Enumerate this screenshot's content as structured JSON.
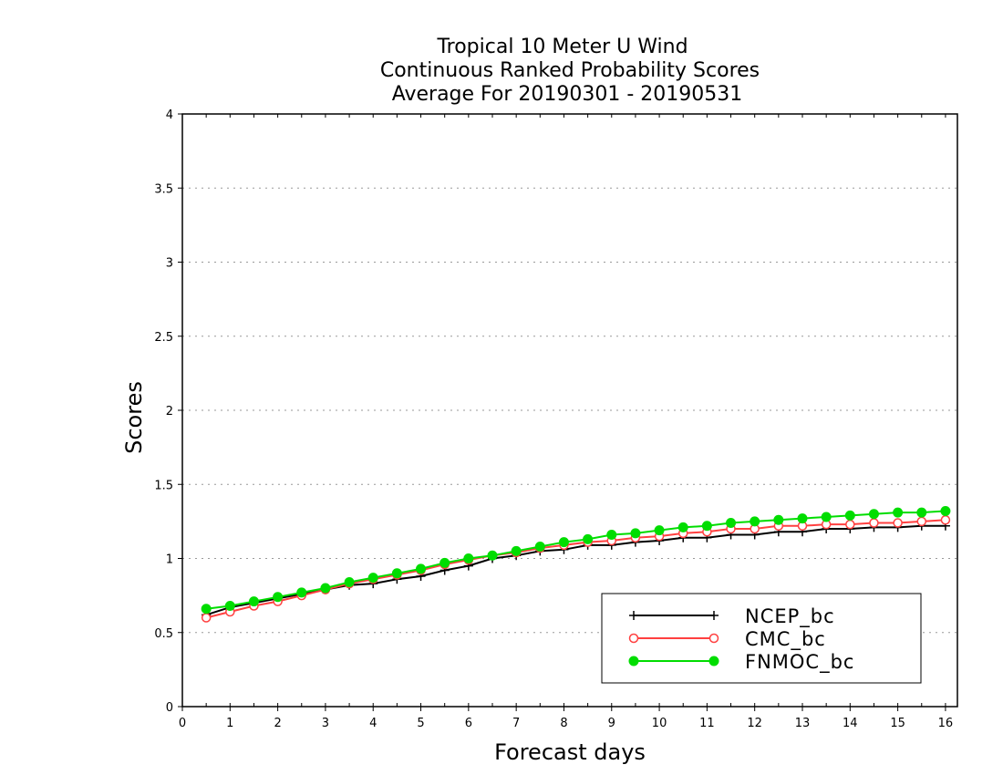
{
  "chart_data": {
    "type": "line",
    "title_lines": [
      "Tropical 10 Meter U Wind",
      "Continuous Ranked Probability Scores",
      "Average For 20190301 - 20190531"
    ],
    "xlabel": "Forecast days",
    "ylabel": "Scores",
    "xlim": [
      0,
      16.25
    ],
    "ylim": [
      0,
      4
    ],
    "x_ticks": [
      0,
      1,
      2,
      3,
      4,
      5,
      6,
      7,
      8,
      9,
      10,
      11,
      12,
      13,
      14,
      15,
      16
    ],
    "y_ticks": [
      0,
      0.5,
      1,
      1.5,
      2,
      2.5,
      3,
      3.5,
      4
    ],
    "y_tick_labels": [
      "0",
      "0.5",
      "1",
      "1.5",
      "2",
      "2.5",
      "3",
      "3.5",
      "4"
    ],
    "grid": "horizontal dotted",
    "legend_position": "bottom-right",
    "x": [
      0.5,
      1,
      1.5,
      2,
      2.5,
      3,
      3.5,
      4,
      4.5,
      5,
      5.5,
      6,
      6.5,
      7,
      7.5,
      8,
      8.5,
      9,
      9.5,
      10,
      10.5,
      11,
      11.5,
      12,
      12.5,
      13,
      13.5,
      14,
      14.5,
      15,
      15.5,
      16
    ],
    "series": [
      {
        "name": "NCEP_bc",
        "color": "#000000",
        "marker": "plus",
        "values": [
          0.62,
          0.67,
          0.7,
          0.73,
          0.76,
          0.79,
          0.82,
          0.83,
          0.86,
          0.88,
          0.92,
          0.95,
          1.0,
          1.02,
          1.05,
          1.06,
          1.09,
          1.09,
          1.11,
          1.12,
          1.14,
          1.14,
          1.16,
          1.16,
          1.18,
          1.18,
          1.2,
          1.2,
          1.21,
          1.21,
          1.22,
          1.22
        ]
      },
      {
        "name": "CMC_bc",
        "color": "#ff4040",
        "marker": "open-circle",
        "values": [
          0.6,
          0.64,
          0.68,
          0.71,
          0.75,
          0.79,
          0.83,
          0.86,
          0.89,
          0.92,
          0.96,
          0.99,
          1.02,
          1.04,
          1.07,
          1.09,
          1.11,
          1.12,
          1.14,
          1.15,
          1.17,
          1.18,
          1.2,
          1.2,
          1.22,
          1.22,
          1.23,
          1.23,
          1.24,
          1.24,
          1.25,
          1.26
        ]
      },
      {
        "name": "FNMOC_bc",
        "color": "#00dd00",
        "marker": "filled-circle",
        "values": [
          0.66,
          0.68,
          0.71,
          0.74,
          0.77,
          0.8,
          0.84,
          0.87,
          0.9,
          0.93,
          0.97,
          1.0,
          1.02,
          1.05,
          1.08,
          1.11,
          1.13,
          1.16,
          1.17,
          1.19,
          1.21,
          1.22,
          1.24,
          1.25,
          1.26,
          1.27,
          1.28,
          1.29,
          1.3,
          1.31,
          1.31,
          1.32
        ]
      }
    ]
  }
}
